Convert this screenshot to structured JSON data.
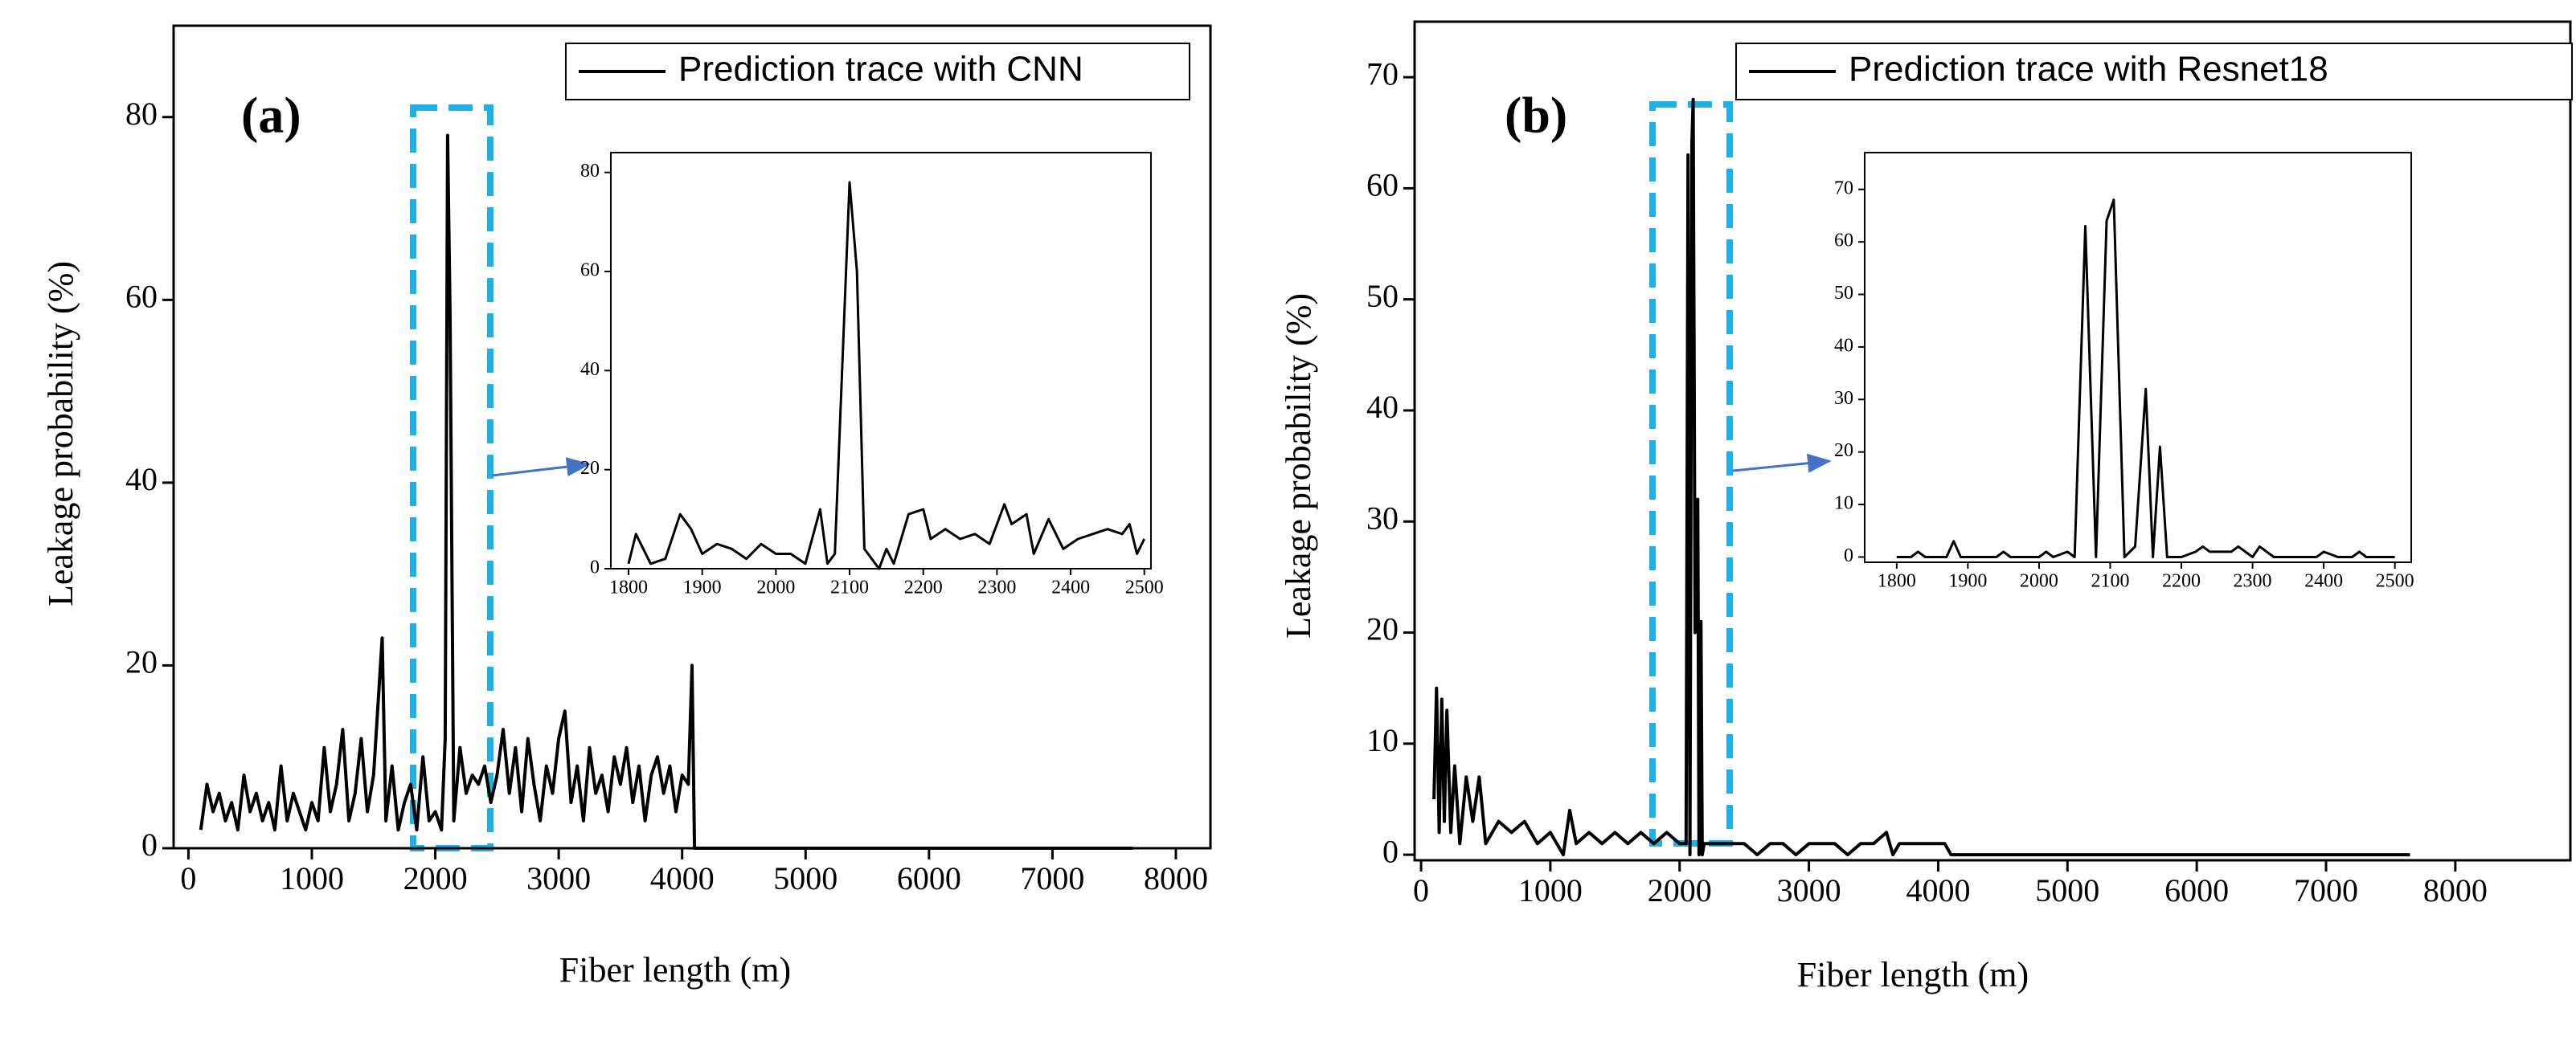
{
  "chart_data": [
    {
      "type": "line",
      "label": "(a)",
      "xlabel": "Fiber length (m)",
      "ylabel": "Leakage probability (%)",
      "x": [
        100,
        150,
        200,
        250,
        300,
        350,
        400,
        450,
        500,
        550,
        600,
        650,
        700,
        750,
        800,
        850,
        900,
        950,
        1000,
        1050,
        1100,
        1150,
        1200,
        1250,
        1300,
        1350,
        1400,
        1450,
        1500,
        1570,
        1600,
        1650,
        1700,
        1750,
        1800,
        1850,
        1900,
        1950,
        2000,
        2050,
        2080,
        2100,
        2120,
        2150,
        2200,
        2250,
        2300,
        2350,
        2400,
        2450,
        2500,
        2550,
        2600,
        2650,
        2700,
        2750,
        2800,
        2850,
        2900,
        2950,
        3000,
        3050,
        3100,
        3150,
        3200,
        3250,
        3300,
        3350,
        3400,
        3450,
        3500,
        3550,
        3600,
        3650,
        3700,
        3750,
        3800,
        3850,
        3900,
        3950,
        4000,
        4050,
        4080,
        4100,
        7650
      ],
      "series": [
        {
          "name": "Prediction trace with CNN",
          "color": "#000000",
          "values": [
            2,
            7,
            4,
            6,
            3,
            5,
            2,
            8,
            4,
            6,
            3,
            5,
            2,
            9,
            3,
            6,
            4,
            2,
            5,
            3,
            11,
            4,
            7,
            13,
            3,
            6,
            12,
            4,
            8,
            23,
            3,
            9,
            2,
            5,
            7,
            2,
            10,
            3,
            4,
            2,
            12,
            78,
            58,
            3,
            11,
            6,
            8,
            7,
            9,
            5,
            8,
            13,
            6,
            11,
            4,
            12,
            7,
            3,
            9,
            6,
            12,
            15,
            5,
            9,
            3,
            11,
            6,
            8,
            4,
            10,
            7,
            11,
            5,
            9,
            3,
            8,
            10,
            6,
            9,
            4,
            8,
            7,
            20,
            0,
            0
          ]
        }
      ],
      "xlim": [
        -120,
        8280
      ],
      "ylim": [
        0,
        90
      ],
      "xticks": [
        0,
        1000,
        2000,
        3000,
        4000,
        5000,
        6000,
        7000,
        8000
      ],
      "yticks": [
        0,
        20,
        40,
        60,
        80
      ]
    },
    {
      "type": "line",
      "x": [
        1800,
        1810,
        1830,
        1850,
        1870,
        1885,
        1900,
        1920,
        1940,
        1960,
        1980,
        2000,
        2020,
        2040,
        2060,
        2070,
        2080,
        2100,
        2110,
        2120,
        2140,
        2150,
        2160,
        2180,
        2200,
        2210,
        2230,
        2250,
        2270,
        2290,
        2310,
        2320,
        2340,
        2350,
        2370,
        2390,
        2410,
        2430,
        2450,
        2470,
        2480,
        2490,
        2500
      ],
      "series": [
        {
          "color": "#000000",
          "values": [
            1,
            7,
            1,
            2,
            11,
            8,
            3,
            5,
            4,
            2,
            5,
            3,
            3,
            1,
            12,
            1,
            3,
            78,
            60,
            4,
            0,
            4,
            1,
            11,
            12,
            6,
            8,
            6,
            7,
            5,
            13,
            9,
            11,
            3,
            10,
            4,
            6,
            7,
            8,
            7,
            9,
            3,
            6
          ]
        }
      ],
      "xlim": [
        1776,
        2509
      ],
      "ylim": [
        0,
        84
      ],
      "xticks": [
        1800,
        1900,
        2000,
        2100,
        2200,
        2300,
        2400,
        2500
      ],
      "yticks": [
        0,
        20,
        40,
        60,
        80
      ]
    },
    {
      "type": "line",
      "label": "(b)",
      "xlabel": "Fiber length (m)",
      "ylabel": "Leakage probability (%)",
      "x": [
        100,
        120,
        140,
        160,
        180,
        200,
        230,
        260,
        300,
        350,
        400,
        450,
        500,
        600,
        700,
        800,
        900,
        1000,
        1100,
        1150,
        1200,
        1300,
        1400,
        1500,
        1600,
        1700,
        1800,
        1900,
        2000,
        2050,
        2065,
        2080,
        2095,
        2105,
        2120,
        2140,
        2150,
        2165,
        2175,
        2190,
        2250,
        2300,
        2400,
        2500,
        2600,
        2700,
        2800,
        2900,
        3000,
        3100,
        3200,
        3300,
        3400,
        3500,
        3600,
        3650,
        3700,
        4000,
        4050,
        4100,
        7650
      ],
      "series": [
        {
          "name": "Prediction trace with Resnet18",
          "color": "#000000",
          "values": [
            5,
            15,
            2,
            14,
            3,
            13,
            2,
            8,
            1,
            7,
            3,
            7,
            1,
            3,
            2,
            3,
            1,
            2,
            0,
            4,
            1,
            2,
            1,
            2,
            1,
            2,
            1,
            2,
            1,
            1,
            63,
            0,
            64,
            68,
            20,
            32,
            0,
            21,
            0,
            1,
            1,
            1,
            1,
            1,
            0,
            1,
            1,
            0,
            1,
            1,
            1,
            0,
            1,
            1,
            2,
            0,
            1,
            1,
            1,
            0,
            0
          ]
        }
      ],
      "xlim": [
        -50,
        8890
      ],
      "ylim": [
        -0.5,
        75
      ],
      "xticks": [
        0,
        1000,
        2000,
        3000,
        4000,
        5000,
        6000,
        7000,
        8000
      ],
      "yticks": [
        0,
        10,
        20,
        30,
        40,
        50,
        60,
        70
      ]
    },
    {
      "type": "line",
      "x": [
        1800,
        1820,
        1830,
        1840,
        1870,
        1880,
        1890,
        1940,
        1950,
        1960,
        2000,
        2010,
        2020,
        2040,
        2050,
        2065,
        2080,
        2095,
        2105,
        2120,
        2135,
        2150,
        2160,
        2170,
        2180,
        2200,
        2220,
        2230,
        2240,
        2270,
        2280,
        2300,
        2310,
        2330,
        2390,
        2400,
        2420,
        2440,
        2450,
        2460,
        2500
      ],
      "series": [
        {
          "color": "#000000",
          "values": [
            0,
            0,
            1,
            0,
            0,
            3,
            0,
            0,
            1,
            0,
            0,
            1,
            0,
            1,
            0,
            63,
            0,
            64,
            68,
            0,
            2,
            32,
            0,
            21,
            0,
            0,
            1,
            2,
            1,
            1,
            2,
            0,
            2,
            0,
            0,
            1,
            0,
            0,
            1,
            0,
            0
          ]
        }
      ],
      "xlim": [
        1755,
        2523
      ],
      "ylim": [
        -1,
        77
      ],
      "xticks": [
        1800,
        1900,
        2000,
        2100,
        2200,
        2300,
        2400,
        2500
      ],
      "yticks": [
        0,
        10,
        20,
        30,
        40,
        50,
        60,
        70
      ]
    }
  ]
}
